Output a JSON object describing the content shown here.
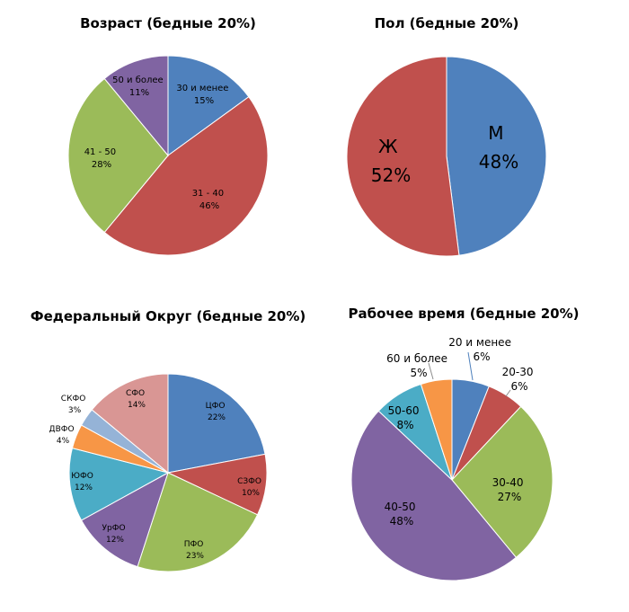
{
  "chart_data": [
    {
      "type": "pie",
      "title": "Возраст (бедные 20%)",
      "slices": [
        {
          "label": "30 и менее",
          "value": 15,
          "pct": "15%",
          "color": "#4F81BD"
        },
        {
          "label": "31 - 40",
          "value": 46,
          "pct": "46%",
          "color": "#C0504D"
        },
        {
          "label": "41 - 50",
          "value": 28,
          "pct": "28%",
          "color": "#9BBB59"
        },
        {
          "label": "50 и более",
          "value": 11,
          "pct": "11%",
          "color": "#8064A2"
        }
      ]
    },
    {
      "type": "pie",
      "title": "Пол (бедные 20%)",
      "slices": [
        {
          "label": "М",
          "value": 48,
          "pct": "48%",
          "color": "#4F81BD"
        },
        {
          "label": "Ж",
          "value": 52,
          "pct": "52%",
          "color": "#C0504D"
        }
      ]
    },
    {
      "type": "pie",
      "title": "Федеральный Округ (бедные 20%)",
      "slices": [
        {
          "label": "ЦФО",
          "value": 22,
          "pct": "22%",
          "color": "#4F81BD"
        },
        {
          "label": "СЗФО",
          "value": 10,
          "pct": "10%",
          "color": "#C0504D"
        },
        {
          "label": "ПФО",
          "value": 23,
          "pct": "23%",
          "color": "#9BBB59"
        },
        {
          "label": "УрФО",
          "value": 12,
          "pct": "12%",
          "color": "#8064A2"
        },
        {
          "label": "ЮФО",
          "value": 12,
          "pct": "12%",
          "color": "#4BACC6"
        },
        {
          "label": "ДВФО",
          "value": 4,
          "pct": "4%",
          "color": "#F79646"
        },
        {
          "label": "СКФО",
          "value": 3,
          "pct": "3%",
          "color": "#95B3D7"
        },
        {
          "label": "СФО",
          "value": 14,
          "pct": "14%",
          "color": "#D99694"
        }
      ]
    },
    {
      "type": "pie",
      "title": "Рабочее время (бедные 20%)",
      "slices": [
        {
          "label": "20 и менее",
          "value": 6,
          "pct": "6%",
          "color": "#4F81BD"
        },
        {
          "label": "20-30",
          "value": 6,
          "pct": "6%",
          "color": "#C0504D"
        },
        {
          "label": "30-40",
          "value": 27,
          "pct": "27%",
          "color": "#9BBB59"
        },
        {
          "label": "40-50",
          "value": 48,
          "pct": "48%",
          "color": "#8064A2"
        },
        {
          "label": "50-60",
          "value": 8,
          "pct": "8%",
          "color": "#4BACC6"
        },
        {
          "label": "60 и более",
          "value": 5,
          "pct": "5%",
          "color": "#F79646"
        }
      ]
    }
  ]
}
